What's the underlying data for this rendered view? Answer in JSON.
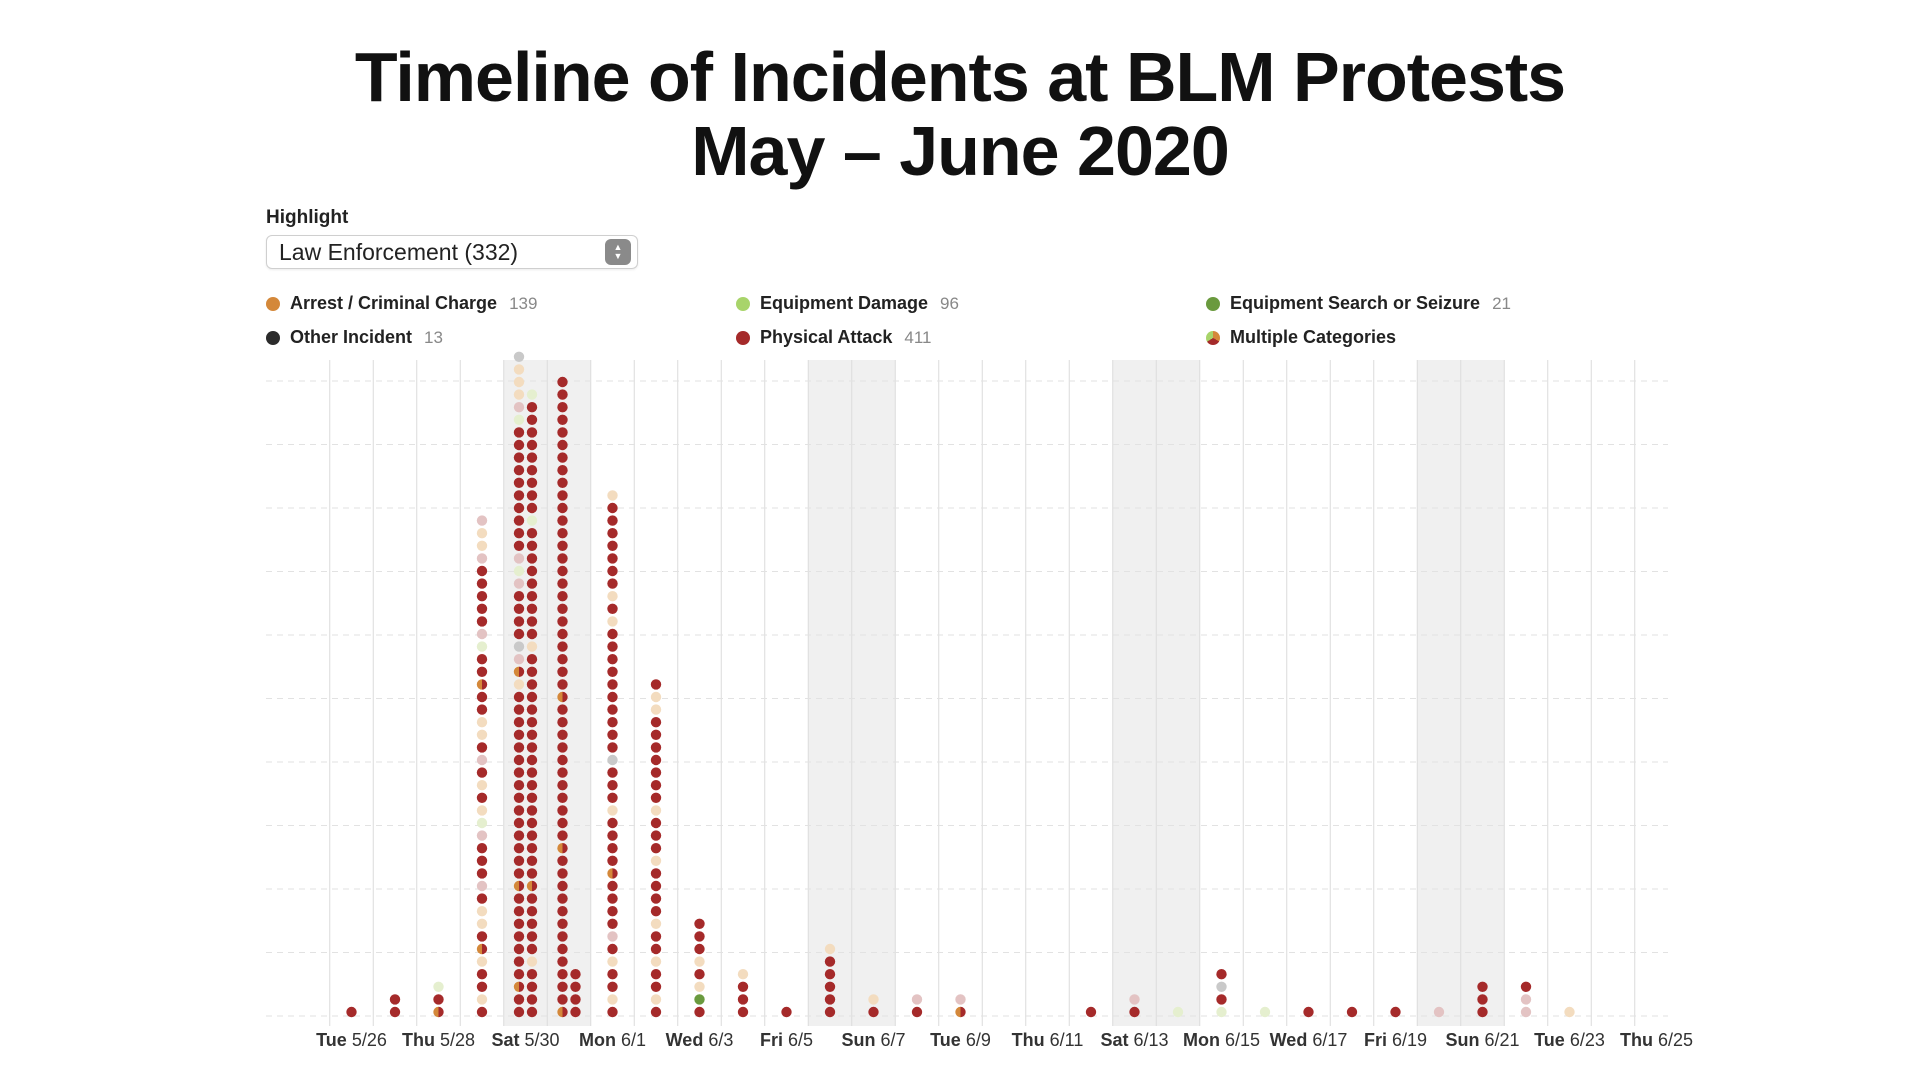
{
  "title": {
    "line1": "Timeline of Incidents at BLM Protests",
    "line2": "May – June 2020"
  },
  "highlight": {
    "label": "Highlight",
    "selected": "Law Enforcement (332)"
  },
  "legend": [
    {
      "name": "Arrest / Criminal Charge",
      "count": "139",
      "color": "#d4883a"
    },
    {
      "name": "Equipment Damage",
      "count": "96",
      "color": "#a8d46a"
    },
    {
      "name": "Equipment Search or Seizure",
      "count": "21",
      "color": "#6a9a3e"
    },
    {
      "name": "Other Incident",
      "count": "13",
      "color": "#2b2b2b"
    },
    {
      "name": "Physical Attack",
      "count": "411",
      "color": "#a52a2a"
    },
    {
      "name": "Multiple Categories",
      "count": "",
      "color": "multi"
    }
  ],
  "chart_data": {
    "type": "scatter",
    "x_axis": "date",
    "tick_labels": [
      {
        "day": "Tue",
        "date": "5/26"
      },
      {
        "day": "Thu",
        "date": "5/28"
      },
      {
        "day": "Sat",
        "date": "5/30"
      },
      {
        "day": "Mon",
        "date": "6/1"
      },
      {
        "day": "Wed",
        "date": "6/3"
      },
      {
        "day": "Fri",
        "date": "6/5"
      },
      {
        "day": "Sun",
        "date": "6/7"
      },
      {
        "day": "Tue",
        "date": "6/9"
      },
      {
        "day": "Thu",
        "date": "6/11"
      },
      {
        "day": "Sat",
        "date": "6/13"
      },
      {
        "day": "Mon",
        "date": "6/15"
      },
      {
        "day": "Wed",
        "date": "6/17"
      },
      {
        "day": "Fri",
        "date": "6/19"
      },
      {
        "day": "Sun",
        "date": "6/21"
      },
      {
        "day": "Tue",
        "date": "6/23"
      },
      {
        "day": "Thu",
        "date": "6/25"
      }
    ],
    "x_range": [
      "5/25",
      "6/26"
    ],
    "weekend_shading": [
      [
        "5/30",
        "5/31"
      ],
      [
        "6/6",
        "6/7"
      ],
      [
        "6/13",
        "6/14"
      ],
      [
        "6/20",
        "6/21"
      ]
    ],
    "grid": true,
    "marker_colors": {
      "physical": "#a52a2a",
      "arrest": "#d4883a",
      "damage": "#a8d46a",
      "search": "#6a9a3e",
      "other": "#2b2b2b",
      "physical_faded": "#e3c3c3",
      "arrest_faded": "#f3dcbf",
      "damage_faded": "#e5efcf",
      "other_faded": "#c9c9c9"
    },
    "columns": [
      {
        "date": "5/26",
        "incidents": "P"
      },
      {
        "date": "5/27",
        "incidents": "PP"
      },
      {
        "date": "5/28",
        "incidents": "MPd"
      },
      {
        "date": "5/29",
        "incidents": "PaPPaMPaaPpPPPpdaPaPpPaaPPMPPdpPPPPPpaap"
      },
      {
        "date": "5/30",
        "incidents": "PPMPPPPPPPMPPPPPPPPPPPPPPPaMpoPPPPpdpPPPPPPPPPPdpaaao",
        "col2": "PPPPaPPPPPMPPPPPPPPPPPPPPPPPPaPPPPPPPPPdPPPPPPPPPd"
      },
      {
        "date": "5/31",
        "incidents": "MPPPPPPPPPPPPMPPPPPPPPPPPMPPPPPPPPPPPPPPPPPPPPPPPPP",
        "col2": "PPPP"
      },
      {
        "date": "6/1",
        "incidents": "PaPPaPpPPPPMPPPPaPPPoPPPPPPPPPPaPaPPPPPPPa"
      },
      {
        "date": "6/2",
        "incidents": "PaPPaPPaPPPPaPPPaPPPPPPPaaP"
      },
      {
        "date": "6/3",
        "incidents": "PSaPaPPP"
      },
      {
        "date": "6/4",
        "incidents": "PPPa"
      },
      {
        "date": "6/5",
        "incidents": "P"
      },
      {
        "date": "6/6",
        "incidents": "PPPPPa"
      },
      {
        "date": "6/7",
        "incidents": "Pa"
      },
      {
        "date": "6/8",
        "incidents": "Pp"
      },
      {
        "date": "6/9",
        "incidents": "Mp"
      },
      {
        "date": "6/12",
        "incidents": "P"
      },
      {
        "date": "6/13",
        "incidents": "Pp"
      },
      {
        "date": "6/14",
        "incidents": "d"
      },
      {
        "date": "6/15",
        "incidents": "dPoP"
      },
      {
        "date": "6/16",
        "incidents": "d"
      },
      {
        "date": "6/17",
        "incidents": "P"
      },
      {
        "date": "6/18",
        "incidents": "P"
      },
      {
        "date": "6/19",
        "incidents": "P"
      },
      {
        "date": "6/20",
        "incidents": "p"
      },
      {
        "date": "6/21",
        "incidents": "PPP"
      },
      {
        "date": "6/22",
        "incidents": "ppP"
      },
      {
        "date": "6/23",
        "incidents": "a"
      }
    ]
  }
}
